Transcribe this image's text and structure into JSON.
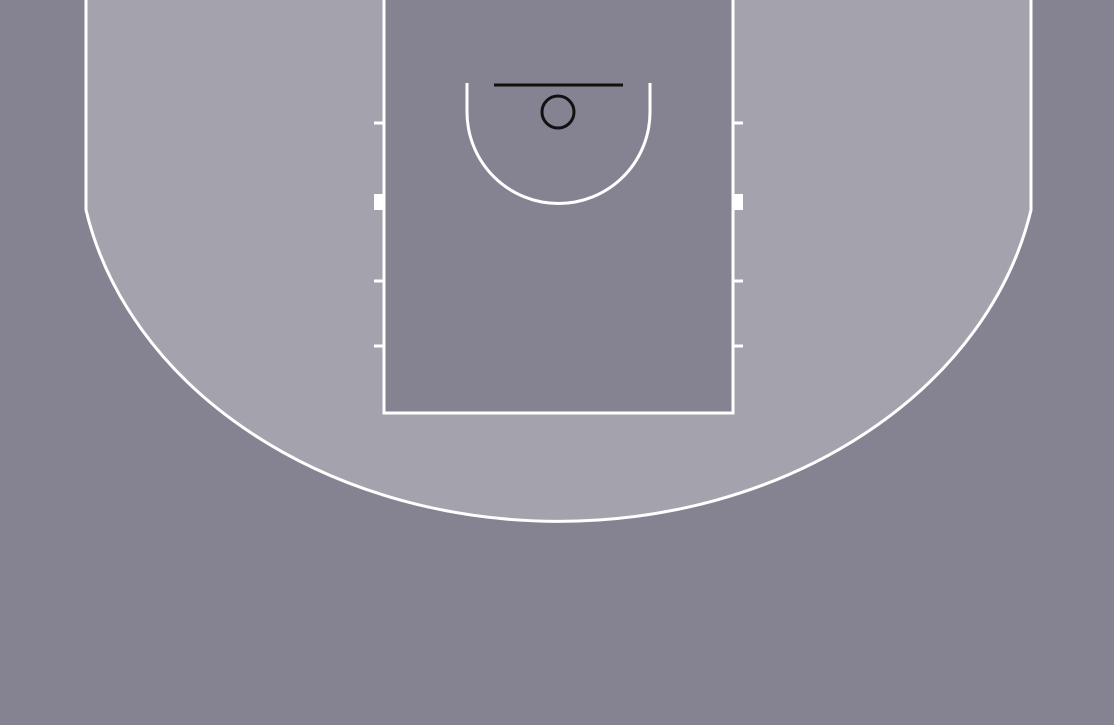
{
  "court": {
    "floor_color": "#858391",
    "three_point_zone_color": "#a4a3ad",
    "paint_color": "#858391",
    "line_color": "#ffffff",
    "backboard_color": "#111111",
    "rim_color": "#111111"
  }
}
